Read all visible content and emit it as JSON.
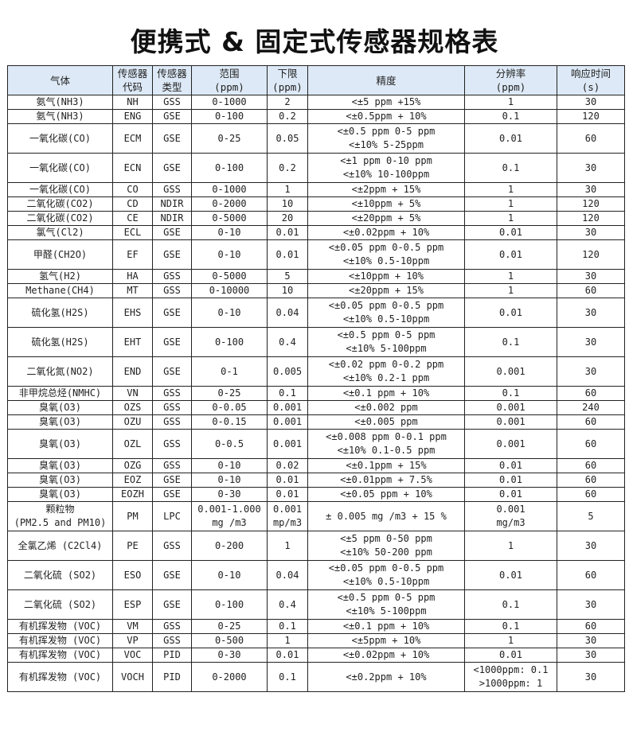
{
  "title": "便携式 & 固定式传感器规格表",
  "headers": [
    "气体",
    "传感器\n代码",
    "传感器\n类型",
    "范围\n(ppm)",
    "下限\n(ppm)",
    "精度",
    "分辨率\n(ppm)",
    "响应时间\n(s)"
  ],
  "rows": [
    [
      "氨气(NH3)",
      "NH",
      "GSS",
      "0-1000",
      "2",
      "<±5 ppm +15%",
      "1",
      "30"
    ],
    [
      "氨气(NH3)",
      "ENG",
      "GSE",
      "0-100",
      "0.2",
      "<±0.5ppm + 10%",
      "0.1",
      "120"
    ],
    [
      "一氧化碳(CO)",
      "ECM",
      "GSE",
      "0-25",
      "0.05",
      "<±0.5 ppm 0-5 ppm\n<±10% 5-25ppm",
      "0.01",
      "60"
    ],
    [
      "一氧化碳(CO)",
      "ECN",
      "GSE",
      "0-100",
      "0.2",
      "<±1 ppm 0-10 ppm\n<±10% 10-100ppm",
      "0.1",
      "30"
    ],
    [
      "一氧化碳(CO)",
      "CO",
      "GSS",
      "0-1000",
      "1",
      "<±2ppm + 15%",
      "1",
      "30"
    ],
    [
      "二氧化碳(CO2)",
      "CD",
      "NDIR",
      "0-2000",
      "10",
      "<±10ppm + 5%",
      "1",
      "120"
    ],
    [
      "二氧化碳(CO2)",
      "CE",
      "NDIR",
      "0-5000",
      "20",
      "<±20ppm + 5%",
      "1",
      "120"
    ],
    [
      "氯气(Cl2)",
      "ECL",
      "GSE",
      "0-10",
      "0.01",
      "<±0.02ppm + 10%",
      "0.01",
      "30"
    ],
    [
      "甲醛(CH2O)",
      "EF",
      "GSE",
      "0-10",
      "0.01",
      "<±0.05 ppm 0-0.5 ppm\n<±10% 0.5-10ppm",
      "0.01",
      "120"
    ],
    [
      "氢气(H2)",
      "HA",
      "GSS",
      "0-5000",
      "5",
      "<±10ppm + 10%",
      "1",
      "30"
    ],
    [
      "Methane(CH4)",
      "MT",
      "GSS",
      "0-10000",
      "10",
      "<±20ppm + 15%",
      "1",
      "60"
    ],
    [
      "硫化氢(H2S)",
      "EHS",
      "GSE",
      "0-10",
      "0.04",
      "<±0.05 ppm 0-0.5 ppm\n<±10% 0.5-10ppm",
      "0.01",
      "30"
    ],
    [
      "硫化氢(H2S)",
      "EHT",
      "GSE",
      "0-100",
      "0.4",
      "<±0.5 ppm 0-5 ppm\n<±10% 5-100ppm",
      "0.1",
      "30"
    ],
    [
      "二氧化氮(NO2)",
      "END",
      "GSE",
      "0-1",
      "0.005",
      "<±0.02 ppm 0-0.2 ppm\n<±10% 0.2-1 ppm",
      "0.001",
      "30"
    ],
    [
      "非甲烷总烃(NMHC)",
      "VN",
      "GSS",
      "0-25",
      "0.1",
      "<±0.1 ppm + 10%",
      "0.1",
      "60"
    ],
    [
      "臭氧(O3)",
      "OZS",
      "GSS",
      "0-0.05",
      "0.001",
      "<±0.002 ppm",
      "0.001",
      "240"
    ],
    [
      "臭氧(O3)",
      "OZU",
      "GSS",
      "0-0.15",
      "0.001",
      "<±0.005 ppm",
      "0.001",
      "60"
    ],
    [
      "臭氧(O3)",
      "OZL",
      "GSS",
      "0-0.5",
      "0.001",
      "<±0.008 ppm 0-0.1 ppm\n<±10% 0.1-0.5 ppm",
      "0.001",
      "60"
    ],
    [
      "臭氧(O3)",
      "OZG",
      "GSS",
      "0-10",
      "0.02",
      "<±0.1ppm + 15%",
      "0.01",
      "60"
    ],
    [
      "臭氧(O3)",
      "EOZ",
      "GSE",
      "0-10",
      "0.01",
      "<±0.01ppm + 7.5%",
      "0.01",
      "60"
    ],
    [
      "臭氧(O3)",
      "EOZH",
      "GSE",
      "0-30",
      "0.01",
      "<±0.05 ppm + 10%",
      "0.01",
      "60"
    ],
    [
      "颗粒物\n(PM2.5 and PM10)",
      "PM",
      "LPC",
      "0.001-1.000\nmg /m3",
      "0.001\nmp/m3",
      "± 0.005 mg /m3 + 15 %",
      "0.001\nmg/m3",
      "5"
    ],
    [
      "全氯乙烯 (C2Cl4)",
      "PE",
      "GSS",
      "0-200",
      "1",
      "<±5 ppm 0-50 ppm\n<±10% 50-200 ppm",
      "1",
      "30"
    ],
    [
      "二氧化硫 (SO2)",
      "ESO",
      "GSE",
      "0-10",
      "0.04",
      "<±0.05 ppm 0-0.5 ppm\n<±10% 0.5-10ppm",
      "0.01",
      "60"
    ],
    [
      "二氧化硫 (SO2)",
      "ESP",
      "GSE",
      "0-100",
      "0.4",
      "<±0.5 ppm 0-5 ppm\n<±10% 5-100ppm",
      "0.1",
      "30"
    ],
    [
      "有机挥发物 (VOC)",
      "VM",
      "GSS",
      "0-25",
      "0.1",
      "<±0.1 ppm + 10%",
      "0.1",
      "60"
    ],
    [
      "有机挥发物 (VOC)",
      "VP",
      "GSS",
      "0-500",
      "1",
      "<±5ppm + 10%",
      "1",
      "30"
    ],
    [
      "有机挥发物 (VOC)",
      "VOC",
      "PID",
      "0-30",
      "0.01",
      "<±0.02ppm + 10%",
      "0.01",
      "30"
    ],
    [
      "有机挥发物 (VOC)",
      "VOCH",
      "PID",
      "0-2000",
      "0.1",
      "<±0.2ppm + 10%",
      "<1000ppm: 0.1\n>1000ppm: 1",
      "30"
    ]
  ]
}
